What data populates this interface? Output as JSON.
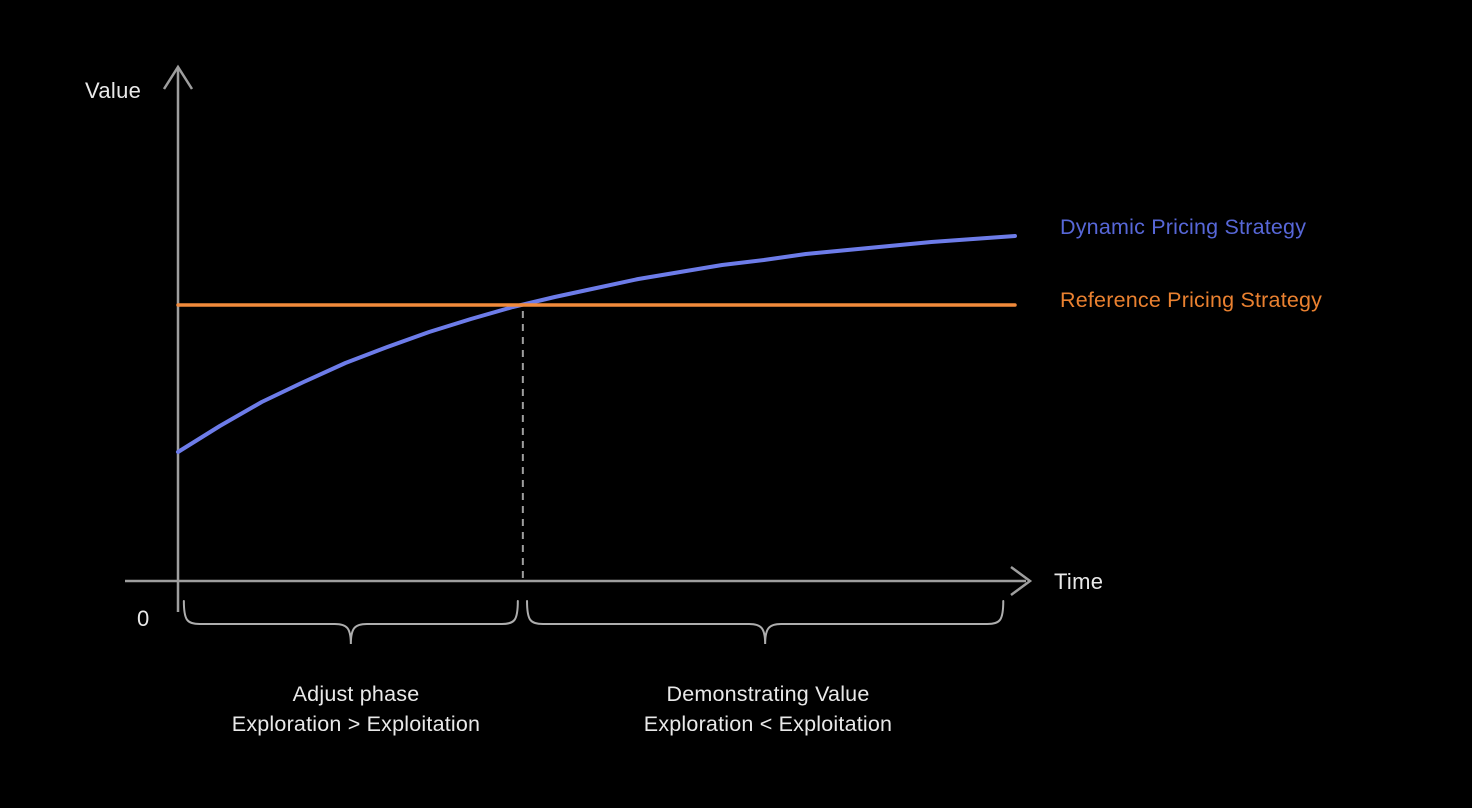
{
  "background_color": "#000000",
  "chart_data": {
    "type": "line",
    "title": "",
    "xlabel": "Time",
    "ylabel": "Value",
    "origin_label": "0",
    "xlim": [
      0,
      10
    ],
    "ylim": [
      0,
      4.6
    ],
    "grid": false,
    "axis_color": "#9e9e9e",
    "text_color": "#e9e9e9",
    "brace_color": "#aeaeae",
    "dashed_line_color": "#9e9e9e",
    "legend_position": "right of line ends",
    "series": [
      {
        "name": "Dynamic Pricing Strategy",
        "type": "line",
        "color": "#6d7ce9",
        "label_color": "#5767d8",
        "x": [
          0,
          0.5,
          1,
          1.5,
          2,
          2.5,
          3,
          3.5,
          4,
          4.5,
          5,
          5.5,
          6,
          6.5,
          7,
          7.5,
          8,
          8.5,
          9,
          9.5,
          10
        ],
        "y": [
          1.28,
          1.54,
          1.78,
          1.98,
          2.17,
          2.33,
          2.48,
          2.61,
          2.73,
          2.83,
          2.92,
          3.01,
          3.08,
          3.15,
          3.2,
          3.26,
          3.3,
          3.34,
          3.38,
          3.41,
          3.44
        ]
      },
      {
        "name": "Reference Pricing Strategy",
        "type": "line",
        "color": "#f18a3b",
        "label_color": "#ea8130",
        "x": [
          0,
          10
        ],
        "y": [
          2.75,
          2.75
        ]
      }
    ],
    "intersection": {
      "x": 4.12,
      "y": 2.75,
      "marker": "dashed-vertical-drop-line"
    },
    "annotations": [
      {
        "line1": "Adjust phase",
        "line2": "Exploration > Exploitation",
        "x_range": [
          0.07,
          4.06
        ],
        "style": "underbrace"
      },
      {
        "line1": "Demonstrating Value",
        "line2": "Exploration < Exploitation",
        "x_range": [
          4.17,
          9.86
        ],
        "style": "underbrace"
      }
    ]
  }
}
